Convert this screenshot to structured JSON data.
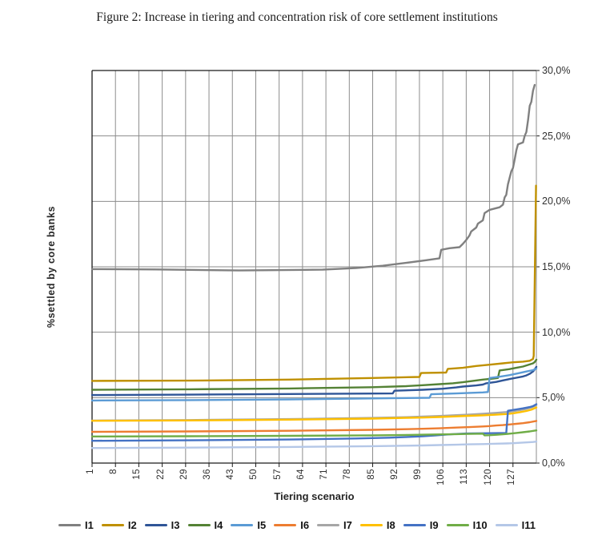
{
  "figure": {
    "title": "Figure 2: Increase in tiering and concentration risk of core settlement institutions"
  },
  "chart_data": {
    "type": "line",
    "title": "Figure 2: Increase in tiering and concentration risk of core settlement institutions",
    "xlabel": "Tiering scenario",
    "ylabel": "%settled by core banks",
    "x_range": [
      1,
      134
    ],
    "ylim": [
      0,
      30
    ],
    "x_ticks": [
      1,
      8,
      15,
      22,
      29,
      36,
      43,
      50,
      57,
      64,
      71,
      78,
      85,
      92,
      99,
      106,
      113,
      120,
      127
    ],
    "y_ticks": [
      {
        "value": 0,
        "label": "0,0%"
      },
      {
        "value": 5,
        "label": "5,0%"
      },
      {
        "value": 10,
        "label": "10,0%"
      },
      {
        "value": 15,
        "label": "15,0%"
      },
      {
        "value": 20,
        "label": "20,0%"
      },
      {
        "value": 25,
        "label": "25,0%"
      },
      {
        "value": 30,
        "label": "30,0%"
      }
    ],
    "grid": true,
    "grid_color": "#8c8c8c",
    "axis_color": "#1a1a1a",
    "legend_position": "bottom",
    "series": [
      {
        "name": "I1",
        "color": "#808080",
        "points": [
          [
            1,
            14.82
          ],
          [
            20,
            14.8
          ],
          [
            45,
            14.72
          ],
          [
            70,
            14.78
          ],
          [
            80,
            14.9
          ],
          [
            88,
            15.08
          ],
          [
            95,
            15.3
          ],
          [
            101,
            15.5
          ],
          [
            105,
            15.65
          ],
          [
            105.5,
            16.3
          ],
          [
            108,
            16.42
          ],
          [
            111,
            16.5
          ],
          [
            112,
            16.75
          ],
          [
            113,
            17.05
          ],
          [
            114,
            17.4
          ],
          [
            114.5,
            17.7
          ],
          [
            116,
            18.0
          ],
          [
            116.5,
            18.3
          ],
          [
            118,
            18.55
          ],
          [
            118.5,
            19.1
          ],
          [
            120,
            19.35
          ],
          [
            123,
            19.55
          ],
          [
            124,
            19.75
          ],
          [
            124.5,
            20.3
          ],
          [
            125,
            20.5
          ],
          [
            125.5,
            21.3
          ],
          [
            126,
            21.8
          ],
          [
            126.5,
            22.3
          ],
          [
            127,
            22.55
          ],
          [
            127.5,
            23.2
          ],
          [
            128,
            23.9
          ],
          [
            128.5,
            24.35
          ],
          [
            130,
            24.5
          ],
          [
            130.5,
            25.0
          ],
          [
            131,
            25.3
          ],
          [
            131.5,
            26.2
          ],
          [
            132,
            27.3
          ],
          [
            132.5,
            27.6
          ],
          [
            133,
            28.45
          ],
          [
            133.5,
            28.9
          ]
        ]
      },
      {
        "name": "I2",
        "color": "#BF9000",
        "points": [
          [
            1,
            6.28
          ],
          [
            30,
            6.3
          ],
          [
            60,
            6.38
          ],
          [
            85,
            6.5
          ],
          [
            99,
            6.58
          ],
          [
            99.5,
            6.88
          ],
          [
            107,
            6.92
          ],
          [
            107.5,
            7.2
          ],
          [
            112,
            7.28
          ],
          [
            116,
            7.42
          ],
          [
            120,
            7.52
          ],
          [
            124,
            7.62
          ],
          [
            127,
            7.7
          ],
          [
            130,
            7.75
          ],
          [
            132,
            7.82
          ],
          [
            133,
            7.95
          ],
          [
            133.2,
            8.2
          ],
          [
            133.9,
            21.2
          ]
        ]
      },
      {
        "name": "I3",
        "color": "#2F5597",
        "points": [
          [
            1,
            5.2
          ],
          [
            30,
            5.23
          ],
          [
            60,
            5.28
          ],
          [
            91,
            5.32
          ],
          [
            91.5,
            5.53
          ],
          [
            100,
            5.6
          ],
          [
            106,
            5.68
          ],
          [
            110,
            5.78
          ],
          [
            112,
            5.85
          ],
          [
            116,
            5.93
          ],
          [
            118,
            6.0
          ],
          [
            119,
            6.1
          ],
          [
            122,
            6.2
          ],
          [
            124,
            6.32
          ],
          [
            126,
            6.42
          ],
          [
            128,
            6.52
          ],
          [
            130,
            6.62
          ],
          [
            131,
            6.7
          ],
          [
            132,
            6.82
          ],
          [
            133,
            7.0
          ],
          [
            133.5,
            7.15
          ],
          [
            134,
            7.35
          ]
        ]
      },
      {
        "name": "I4",
        "color": "#548235",
        "points": [
          [
            1,
            5.6
          ],
          [
            30,
            5.64
          ],
          [
            60,
            5.7
          ],
          [
            85,
            5.8
          ],
          [
            95,
            5.88
          ],
          [
            100,
            5.95
          ],
          [
            105,
            6.03
          ],
          [
            109,
            6.1
          ],
          [
            112,
            6.18
          ],
          [
            115,
            6.28
          ],
          [
            118,
            6.38
          ],
          [
            121,
            6.45
          ],
          [
            122.5,
            6.5
          ],
          [
            123,
            7.08
          ],
          [
            126,
            7.18
          ],
          [
            128,
            7.28
          ],
          [
            130,
            7.38
          ],
          [
            131.5,
            7.5
          ],
          [
            133,
            7.62
          ],
          [
            133.5,
            7.72
          ],
          [
            134,
            7.9
          ]
        ]
      },
      {
        "name": "I5",
        "color": "#5B9BD5",
        "points": [
          [
            1,
            4.78
          ],
          [
            30,
            4.81
          ],
          [
            60,
            4.87
          ],
          [
            90,
            4.95
          ],
          [
            102,
            4.99
          ],
          [
            102.5,
            5.26
          ],
          [
            110,
            5.32
          ],
          [
            118,
            5.4
          ],
          [
            119.5,
            5.43
          ],
          [
            120,
            6.5
          ],
          [
            123,
            6.6
          ],
          [
            126,
            6.72
          ],
          [
            129,
            6.88
          ],
          [
            131,
            7.0
          ],
          [
            133,
            7.1
          ],
          [
            134,
            7.22
          ]
        ]
      },
      {
        "name": "I6",
        "color": "#ED7D31",
        "points": [
          [
            1,
            2.39
          ],
          [
            30,
            2.42
          ],
          [
            60,
            2.47
          ],
          [
            85,
            2.54
          ],
          [
            95,
            2.59
          ],
          [
            100,
            2.62
          ],
          [
            105,
            2.66
          ],
          [
            110,
            2.71
          ],
          [
            114,
            2.75
          ],
          [
            118,
            2.8
          ],
          [
            120,
            2.83
          ],
          [
            122,
            2.87
          ],
          [
            124,
            2.9
          ],
          [
            126,
            2.95
          ],
          [
            128,
            3.0
          ],
          [
            130,
            3.05
          ],
          [
            132,
            3.12
          ],
          [
            134,
            3.22
          ]
        ]
      },
      {
        "name": "I7",
        "color": "#A6A6A6",
        "points": [
          [
            1,
            3.25
          ],
          [
            30,
            3.29
          ],
          [
            60,
            3.36
          ],
          [
            85,
            3.45
          ],
          [
            95,
            3.51
          ],
          [
            100,
            3.55
          ],
          [
            105,
            3.6
          ],
          [
            110,
            3.66
          ],
          [
            114,
            3.71
          ],
          [
            118,
            3.77
          ],
          [
            122,
            3.84
          ],
          [
            125,
            3.9
          ],
          [
            127,
            3.96
          ],
          [
            129,
            4.04
          ],
          [
            131,
            4.14
          ],
          [
            132.5,
            4.25
          ],
          [
            134,
            4.42
          ]
        ]
      },
      {
        "name": "I8",
        "color": "#FFC000",
        "points": [
          [
            1,
            3.23
          ],
          [
            30,
            3.26
          ],
          [
            60,
            3.32
          ],
          [
            85,
            3.4
          ],
          [
            95,
            3.45
          ],
          [
            100,
            3.48
          ],
          [
            105,
            3.52
          ],
          [
            110,
            3.57
          ],
          [
            114,
            3.61
          ],
          [
            118,
            3.65
          ],
          [
            122,
            3.7
          ],
          [
            125,
            3.75
          ],
          [
            127,
            3.8
          ],
          [
            129,
            3.88
          ],
          [
            131,
            3.98
          ],
          [
            132.5,
            4.08
          ],
          [
            134,
            4.25
          ]
        ]
      },
      {
        "name": "I9",
        "color": "#4472C4",
        "points": [
          [
            1,
            1.7
          ],
          [
            30,
            1.74
          ],
          [
            60,
            1.8
          ],
          [
            80,
            1.88
          ],
          [
            90,
            1.94
          ],
          [
            96,
            2.0
          ],
          [
            100,
            2.05
          ],
          [
            104,
            2.12
          ],
          [
            107,
            2.18
          ],
          [
            110,
            2.22
          ],
          [
            113,
            2.26
          ],
          [
            118,
            2.28
          ],
          [
            125,
            2.3
          ],
          [
            125.5,
            4.0
          ],
          [
            128,
            4.1
          ],
          [
            130,
            4.18
          ],
          [
            132,
            4.28
          ],
          [
            133,
            4.35
          ],
          [
            134,
            4.5
          ]
        ]
      },
      {
        "name": "I10",
        "color": "#70AD47",
        "points": [
          [
            1,
            2.03
          ],
          [
            30,
            2.05
          ],
          [
            60,
            2.08
          ],
          [
            85,
            2.12
          ],
          [
            95,
            2.15
          ],
          [
            100,
            2.17
          ],
          [
            105,
            2.19
          ],
          [
            110,
            2.21
          ],
          [
            114,
            2.23
          ],
          [
            118,
            2.25
          ],
          [
            118.5,
            2.12
          ],
          [
            120,
            2.13
          ],
          [
            122,
            2.16
          ],
          [
            124,
            2.2
          ],
          [
            126,
            2.25
          ],
          [
            128,
            2.3
          ],
          [
            130,
            2.36
          ],
          [
            132,
            2.42
          ],
          [
            134,
            2.5
          ]
        ]
      },
      {
        "name": "I11",
        "color": "#B4C7E7",
        "points": [
          [
            1,
            1.15
          ],
          [
            30,
            1.18
          ],
          [
            60,
            1.23
          ],
          [
            85,
            1.29
          ],
          [
            95,
            1.33
          ],
          [
            100,
            1.35
          ],
          [
            105,
            1.38
          ],
          [
            110,
            1.4
          ],
          [
            114,
            1.43
          ],
          [
            118,
            1.45
          ],
          [
            122,
            1.48
          ],
          [
            125,
            1.5
          ],
          [
            127,
            1.52
          ],
          [
            129,
            1.55
          ],
          [
            131,
            1.58
          ],
          [
            133,
            1.61
          ],
          [
            134,
            1.64
          ]
        ]
      }
    ]
  }
}
